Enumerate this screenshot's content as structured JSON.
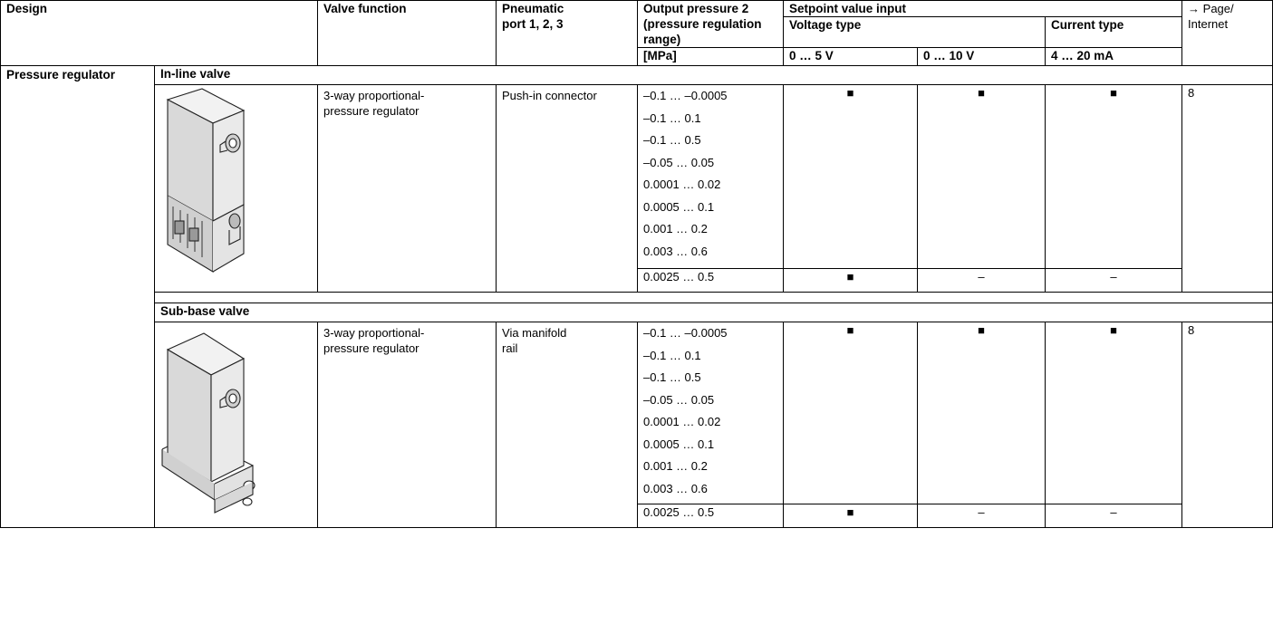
{
  "header": {
    "design": "Design",
    "valve_function": "Valve function",
    "pneumatic_line1": "Pneumatic",
    "pneumatic_line2": "port 1, 2, 3",
    "output_line1": "Output pressure 2",
    "output_line2": "(pressure regulation",
    "output_line3": "range)",
    "output_unit": "[MPa]",
    "setpoint": "Setpoint value input",
    "voltage_type": "Voltage type",
    "current_type": "Current type",
    "page_line1": "→ Page/",
    "page_line2": "Internet",
    "v1": "0 … 5 V",
    "v2": "0 … 10 V",
    "c1": "4 … 20 mA"
  },
  "design_label": "Pressure regulator",
  "groups": [
    {
      "title": "In-line valve",
      "image_icon": "inline-valve-regulator-image",
      "function_line1": "3-way proportional-",
      "function_line2": "pressure regulator",
      "port": "Push-in connector",
      "port_line2": "",
      "ranges": [
        "–0.1 … –0.0005",
        "–0.1 … 0.1",
        "–0.1 … 0.5",
        "–0.05 … 0.05",
        "0.0001 … 0.02",
        "0.0005 … 0.1",
        "0.001 … 0.2",
        "0.003 … 0.6"
      ],
      "ranges_marks": [
        "■",
        "■",
        "■"
      ],
      "extra_range": "0.0025 … 0.5",
      "extra_marks": [
        "■",
        "–",
        "–"
      ],
      "page": "8"
    },
    {
      "title": "Sub-base valve",
      "image_icon": "sub-base-valve-regulator-image",
      "function_line1": "3-way proportional-",
      "function_line2": "pressure regulator",
      "port": "Via manifold",
      "port_line2": "rail",
      "ranges": [
        "–0.1 … –0.0005",
        "–0.1 … 0.1",
        "–0.1 … 0.5",
        "–0.05 … 0.05",
        "0.0001 … 0.02",
        "0.0005 … 0.1",
        "0.001 … 0.2",
        "0.003 … 0.6"
      ],
      "ranges_marks": [
        "■",
        "■",
        "■"
      ],
      "extra_range": "0.0025 … 0.5",
      "extra_marks": [
        "■",
        "–",
        "–"
      ],
      "page": "8"
    }
  ]
}
